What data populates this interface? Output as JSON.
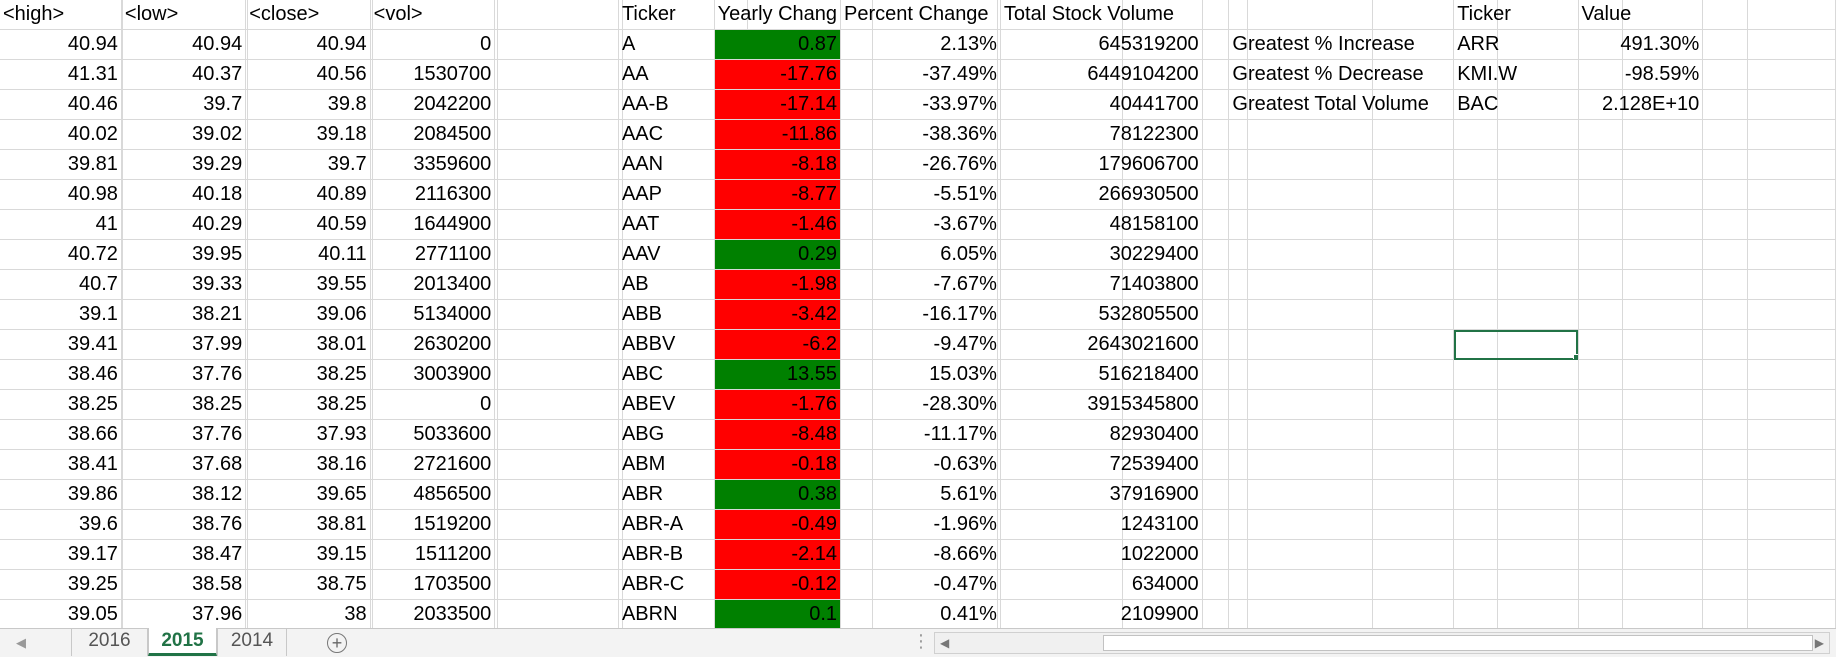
{
  "headers": {
    "high": "<high>",
    "low": "<low>",
    "close": "<close>",
    "vol": "<vol>",
    "ticker": "Ticker",
    "yearly_change": "Yearly Chang",
    "percent_change": "Percent Change",
    "total_volume": "Total Stock Volume",
    "summary_ticker": "Ticker",
    "summary_value": "Value"
  },
  "rows": [
    {
      "high": "40.94",
      "low": "40.94",
      "close": "40.94",
      "vol": "0",
      "ticker": "A",
      "change": "0.87",
      "pct": "2.13%",
      "total": "645319200",
      "status": "positive"
    },
    {
      "high": "41.31",
      "low": "40.37",
      "close": "40.56",
      "vol": "1530700",
      "ticker": "AA",
      "change": "-17.76",
      "pct": "-37.49%",
      "total": "6449104200",
      "status": "negative"
    },
    {
      "high": "40.46",
      "low": "39.7",
      "close": "39.8",
      "vol": "2042200",
      "ticker": "AA-B",
      "change": "-17.14",
      "pct": "-33.97%",
      "total": "40441700",
      "status": "negative"
    },
    {
      "high": "40.02",
      "low": "39.02",
      "close": "39.18",
      "vol": "2084500",
      "ticker": "AAC",
      "change": "-11.86",
      "pct": "-38.36%",
      "total": "78122300",
      "status": "negative"
    },
    {
      "high": "39.81",
      "low": "39.29",
      "close": "39.7",
      "vol": "3359600",
      "ticker": "AAN",
      "change": "-8.18",
      "pct": "-26.76%",
      "total": "179606700",
      "status": "negative"
    },
    {
      "high": "40.98",
      "low": "40.18",
      "close": "40.89",
      "vol": "2116300",
      "ticker": "AAP",
      "change": "-8.77",
      "pct": "-5.51%",
      "total": "266930500",
      "status": "negative"
    },
    {
      "high": "41",
      "low": "40.29",
      "close": "40.59",
      "vol": "1644900",
      "ticker": "AAT",
      "change": "-1.46",
      "pct": "-3.67%",
      "total": "48158100",
      "status": "negative"
    },
    {
      "high": "40.72",
      "low": "39.95",
      "close": "40.11",
      "vol": "2771100",
      "ticker": "AAV",
      "change": "0.29",
      "pct": "6.05%",
      "total": "30229400",
      "status": "positive"
    },
    {
      "high": "40.7",
      "low": "39.33",
      "close": "39.55",
      "vol": "2013400",
      "ticker": "AB",
      "change": "-1.98",
      "pct": "-7.67%",
      "total": "71403800",
      "status": "negative"
    },
    {
      "high": "39.1",
      "low": "38.21",
      "close": "39.06",
      "vol": "5134000",
      "ticker": "ABB",
      "change": "-3.42",
      "pct": "-16.17%",
      "total": "532805500",
      "status": "negative"
    },
    {
      "high": "39.41",
      "low": "37.99",
      "close": "38.01",
      "vol": "2630200",
      "ticker": "ABBV",
      "change": "-6.2",
      "pct": "-9.47%",
      "total": "2643021600",
      "status": "negative"
    },
    {
      "high": "38.46",
      "low": "37.76",
      "close": "38.25",
      "vol": "3003900",
      "ticker": "ABC",
      "change": "13.55",
      "pct": "15.03%",
      "total": "516218400",
      "status": "positive"
    },
    {
      "high": "38.25",
      "low": "38.25",
      "close": "38.25",
      "vol": "0",
      "ticker": "ABEV",
      "change": "-1.76",
      "pct": "-28.30%",
      "total": "3915345800",
      "status": "negative"
    },
    {
      "high": "38.66",
      "low": "37.76",
      "close": "37.93",
      "vol": "5033600",
      "ticker": "ABG",
      "change": "-8.48",
      "pct": "-11.17%",
      "total": "82930400",
      "status": "negative"
    },
    {
      "high": "38.41",
      "low": "37.68",
      "close": "38.16",
      "vol": "2721600",
      "ticker": "ABM",
      "change": "-0.18",
      "pct": "-0.63%",
      "total": "72539400",
      "status": "negative"
    },
    {
      "high": "39.86",
      "low": "38.12",
      "close": "39.65",
      "vol": "4856500",
      "ticker": "ABR",
      "change": "0.38",
      "pct": "5.61%",
      "total": "37916900",
      "status": "positive"
    },
    {
      "high": "39.6",
      "low": "38.76",
      "close": "38.81",
      "vol": "1519200",
      "ticker": "ABR-A",
      "change": "-0.49",
      "pct": "-1.96%",
      "total": "1243100",
      "status": "negative"
    },
    {
      "high": "39.17",
      "low": "38.47",
      "close": "39.15",
      "vol": "1511200",
      "ticker": "ABR-B",
      "change": "-2.14",
      "pct": "-8.66%",
      "total": "1022000",
      "status": "negative"
    },
    {
      "high": "39.25",
      "low": "38.58",
      "close": "38.75",
      "vol": "1703500",
      "ticker": "ABR-C",
      "change": "-0.12",
      "pct": "-0.47%",
      "total": "634000",
      "status": "negative"
    },
    {
      "high": "39.05",
      "low": "37.96",
      "close": "38",
      "vol": "2033500",
      "ticker": "ABRN",
      "change": "0.1",
      "pct": "0.41%",
      "total": "2109900",
      "status": "positive"
    }
  ],
  "summary": [
    {
      "label": "Greatest % Increase",
      "ticker": "ARR",
      "value": "491.30%"
    },
    {
      "label": "Greatest % Decrease",
      "ticker": "KMI.W",
      "value": "-98.59%"
    },
    {
      "label": "Greatest Total Volume",
      "ticker": "BAC",
      "value": "2.128E+10"
    }
  ],
  "sheet_tabs": [
    {
      "label": "2016",
      "active": false
    },
    {
      "label": "2015",
      "active": true
    },
    {
      "label": "2014",
      "active": false
    }
  ],
  "add_sheet_symbol": "+",
  "colors": {
    "positive_fill": "#008000",
    "negative_fill": "#ff0000",
    "grid_line": "#d9d9d9",
    "active_tab_text": "#217346",
    "selection_border": "#217346"
  },
  "icons": {
    "scroll_left": "prev-sheet-arrow-icon",
    "add_sheet": "add-sheet-icon",
    "more": "more-options-icon"
  }
}
